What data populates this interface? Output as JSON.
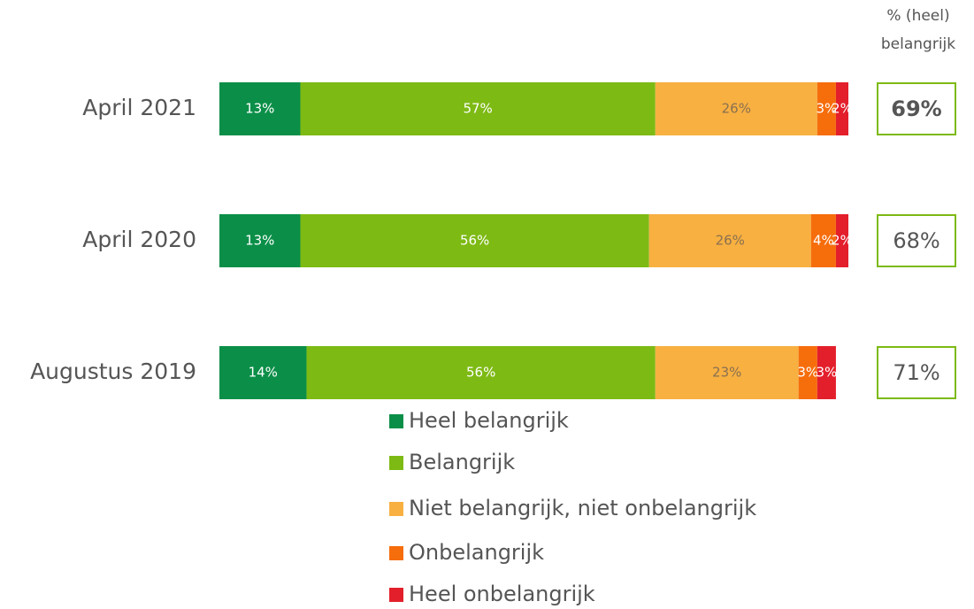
{
  "chart_data": {
    "type": "stacked-barh",
    "categories": [
      "April 2021",
      "April 2020",
      "Augustus 2019"
    ],
    "xlim": [
      0,
      101
    ],
    "series": [
      {
        "name": "Heel belangrijk",
        "color": "#0b8f48",
        "label_color": "#ffffff",
        "values": [
          13,
          13,
          14
        ],
        "value_labels": [
          "13%",
          "13%",
          "14%"
        ]
      },
      {
        "name": "Belangrijk",
        "color": "#7dba14",
        "label_color": "#ffffff",
        "values": [
          57,
          56,
          56
        ],
        "value_labels": [
          "57%",
          "56%",
          "56%"
        ]
      },
      {
        "name": "Niet belangrijk, niet onbelangrijk",
        "color": "#f8b041",
        "label_color": "#8a7050",
        "values": [
          26,
          26,
          23
        ],
        "value_labels": [
          "26%",
          "26%",
          "23%"
        ]
      },
      {
        "name": "Onbelangrijk",
        "color": "#f66d0c",
        "label_color": "#ffffff",
        "values": [
          3,
          4,
          3
        ],
        "value_labels": [
          "3%",
          "4%",
          "3%"
        ]
      },
      {
        "name": "Heel onbelangrijk",
        "color": "#e31f2b",
        "label_color": "#ffffff",
        "values": [
          2,
          2,
          3
        ],
        "value_labels": [
          "2%",
          "2%",
          "3%"
        ]
      }
    ],
    "summary": {
      "title": "% (heel) belangrijk",
      "values": [
        69,
        68,
        71
      ],
      "value_labels": [
        "69%",
        "68%",
        "71%"
      ],
      "border_color": "#7dba14"
    }
  }
}
